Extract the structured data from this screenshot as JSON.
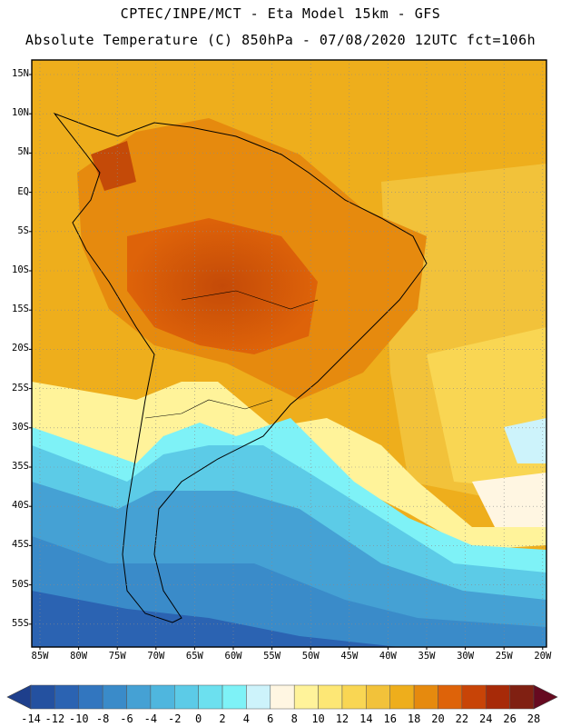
{
  "header": {
    "line1": "CPTEC/INPE/MCT -  Eta Model 15km - GFS",
    "line2": "Absolute Temperature (C) 850hPa - 07/08/2020 12UTC fct=106h"
  },
  "axes": {
    "lat_labels": [
      "15N",
      "10N",
      "5N",
      "EQ",
      "5S",
      "10S",
      "15S",
      "20S",
      "25S",
      "30S",
      "35S",
      "40S",
      "45S",
      "50S",
      "55S"
    ],
    "lon_labels": [
      "85W",
      "80W",
      "75W",
      "70W",
      "65W",
      "60W",
      "55W",
      "50W",
      "45W",
      "40W",
      "35W",
      "30W",
      "25W",
      "20W"
    ]
  },
  "legend": {
    "labels": [
      "-14",
      "-12",
      "-10",
      "-8",
      "-6",
      "-4",
      "-2",
      "0",
      "2",
      "4",
      "6",
      "8",
      "10",
      "12",
      "14",
      "16",
      "18",
      "20",
      "22",
      "24",
      "26",
      "28"
    ],
    "colors": [
      "#1e3f8c",
      "#2451a0",
      "#2b63b2",
      "#3276bf",
      "#3a8bc9",
      "#45a1d4",
      "#4fb6de",
      "#5ccbe7",
      "#6ce0ef",
      "#7ef2f7",
      "#cdf3fb",
      "#fff6e2",
      "#fff39a",
      "#fde775",
      "#f9d653",
      "#f2c23a",
      "#eeae1c",
      "#e68a0e",
      "#de6309",
      "#c84407",
      "#a72a08",
      "#802012",
      "#660a20"
    ]
  },
  "map_data": {
    "region": "South America",
    "variable": "Absolute Temperature (C) 850hPa",
    "lat_range": [
      "17N",
      "57S"
    ],
    "lon_range": [
      "86W",
      "20W"
    ]
  }
}
